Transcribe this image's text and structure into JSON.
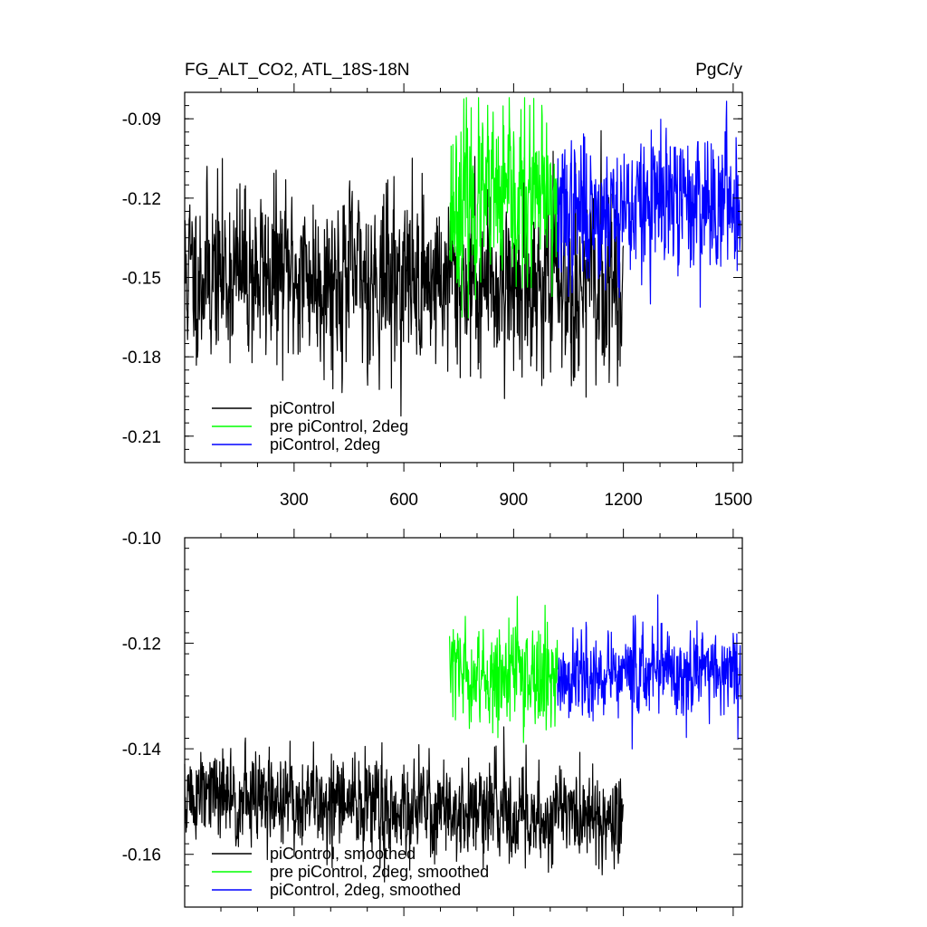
{
  "chart_data": [
    {
      "type": "line",
      "title": "FG_ALT_CO2, ATL_18S-18N",
      "units": "PgC/y",
      "xlim": [
        1,
        1525
      ],
      "ylim": [
        -0.22,
        -0.08
      ],
      "xticks": [
        300,
        600,
        900,
        1200,
        1500
      ],
      "xtick_labels": [
        "300",
        "600",
        "900",
        "1200",
        "1500"
      ],
      "yticks": [
        -0.09,
        -0.12,
        -0.15,
        -0.18,
        -0.21
      ],
      "ytick_labels": [
        "-0.09",
        "-0.12",
        "-0.15",
        "-0.18",
        "-0.21"
      ],
      "series": [
        {
          "name": "piControl",
          "color": "#000000",
          "x_start": 1,
          "x_end": 1200,
          "mean": -0.148,
          "noise": 0.016,
          "trend": -4e-06,
          "seed": 11
        },
        {
          "name": "pre piControl, 2deg",
          "color": "#00ff00",
          "x_start": 725,
          "x_end": 1020,
          "mean": -0.122,
          "noise": 0.016,
          "trend": 0.0,
          "seed": 23
        },
        {
          "name": "piControl, 2deg",
          "color": "#0000ff",
          "x_start": 1020,
          "x_end": 1520,
          "mean": -0.126,
          "noise": 0.013,
          "trend": 1.2e-05,
          "seed": 37
        }
      ],
      "legend": [
        "piControl",
        "pre piControl, 2deg",
        "piControl, 2deg"
      ],
      "legend_position": "bottom-left"
    },
    {
      "type": "line",
      "title": "",
      "xlim": [
        1,
        1525
      ],
      "ylim": [
        -0.17,
        -0.1
      ],
      "xticks": [
        300,
        600,
        900,
        1200,
        1500
      ],
      "yticks": [
        -0.1,
        -0.12,
        -0.14,
        -0.16
      ],
      "ytick_labels": [
        "-0.10",
        "-0.12",
        "-0.14",
        "-0.16"
      ],
      "series": [
        {
          "name": "piControl, smoothed",
          "color": "#000000",
          "x_start": 1,
          "x_end": 1200,
          "mean": -0.149,
          "noise": 0.0045,
          "trend": -3.5e-06,
          "seed": 51
        },
        {
          "name": "pre piControl, 2deg, smoothed",
          "color": "#00ff00",
          "x_start": 725,
          "x_end": 1020,
          "mean": -0.126,
          "noise": 0.0045,
          "trend": 0.0,
          "seed": 63
        },
        {
          "name": "piControl, 2deg, smoothed",
          "color": "#0000ff",
          "x_start": 1020,
          "x_end": 1520,
          "mean": -0.127,
          "noise": 0.0042,
          "trend": 5e-06,
          "seed": 77
        }
      ],
      "legend": [
        "piControl, smoothed",
        "pre piControl, 2deg, smoothed",
        "piControl, 2deg, smoothed"
      ],
      "legend_position": "bottom-left"
    }
  ]
}
